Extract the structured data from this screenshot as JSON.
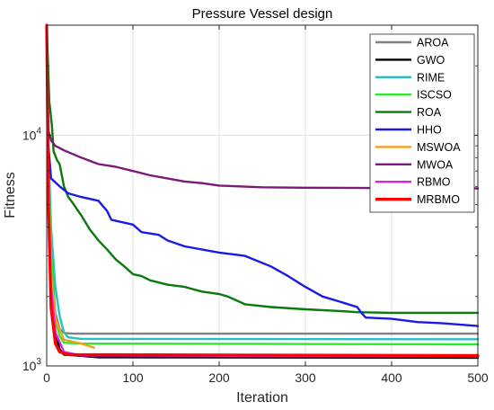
{
  "chart_data": {
    "type": "line",
    "title": "Pressure Vessel design",
    "xlabel": "Iteration",
    "ylabel": "Fitness",
    "xlim": [
      0,
      500
    ],
    "ylim": [
      1000,
      30000
    ],
    "yscale": "log",
    "grid": true,
    "legend_position": "top-right",
    "x_ticks": [
      "0",
      "100",
      "200",
      "300",
      "400",
      "500"
    ],
    "y_ticks": [
      {
        "base": "10",
        "exp": "3",
        "value": 1000
      },
      {
        "base": "10",
        "exp": "4",
        "value": 10000
      }
    ],
    "series": [
      {
        "name": "AROA",
        "color": "#808080",
        "points": [
          [
            0,
            30000
          ],
          [
            2,
            8000
          ],
          [
            5,
            3000
          ],
          [
            10,
            1700
          ],
          [
            15,
            1450
          ],
          [
            20,
            1390
          ],
          [
            30,
            1380
          ],
          [
            500,
            1380
          ]
        ]
      },
      {
        "name": "GWO",
        "color": "#000000",
        "points": [
          [
            0,
            30000
          ],
          [
            2,
            7000
          ],
          [
            5,
            2500
          ],
          [
            10,
            1400
          ],
          [
            15,
            1180
          ],
          [
            20,
            1120
          ],
          [
            35,
            1110
          ],
          [
            60,
            1090
          ],
          [
            500,
            1085
          ]
        ]
      },
      {
        "name": "RIME",
        "color": "#28bfbf",
        "points": [
          [
            0,
            30000
          ],
          [
            2,
            9000
          ],
          [
            5,
            4000
          ],
          [
            10,
            2200
          ],
          [
            15,
            1650
          ],
          [
            20,
            1400
          ],
          [
            25,
            1330
          ],
          [
            40,
            1310
          ],
          [
            500,
            1305
          ]
        ]
      },
      {
        "name": "ISCSO",
        "color": "#2ee82e",
        "points": [
          [
            0,
            30000
          ],
          [
            2,
            7500
          ],
          [
            5,
            3000
          ],
          [
            10,
            1600
          ],
          [
            15,
            1350
          ],
          [
            20,
            1260
          ],
          [
            40,
            1250
          ],
          [
            500,
            1240
          ]
        ]
      },
      {
        "name": "ROA",
        "color": "#0a7a0a",
        "points": [
          [
            0,
            30000
          ],
          [
            3,
            14000
          ],
          [
            6,
            11000
          ],
          [
            8,
            8500
          ],
          [
            12,
            7800
          ],
          [
            15,
            7500
          ],
          [
            20,
            6000
          ],
          [
            25,
            5400
          ],
          [
            30,
            5100
          ],
          [
            40,
            4500
          ],
          [
            50,
            3900
          ],
          [
            60,
            3500
          ],
          [
            70,
            3200
          ],
          [
            80,
            2900
          ],
          [
            90,
            2700
          ],
          [
            100,
            2500
          ],
          [
            110,
            2450
          ],
          [
            120,
            2350
          ],
          [
            140,
            2250
          ],
          [
            160,
            2200
          ],
          [
            180,
            2100
          ],
          [
            200,
            2050
          ],
          [
            210,
            2000
          ],
          [
            230,
            1850
          ],
          [
            260,
            1800
          ],
          [
            300,
            1760
          ],
          [
            340,
            1730
          ],
          [
            360,
            1710
          ],
          [
            400,
            1700
          ],
          [
            500,
            1700
          ]
        ]
      },
      {
        "name": "HHO",
        "color": "#1a1ae6",
        "points": [
          [
            0,
            30000
          ],
          [
            2,
            9000
          ],
          [
            5,
            6500
          ],
          [
            15,
            6000
          ],
          [
            25,
            5600
          ],
          [
            40,
            5400
          ],
          [
            60,
            5200
          ],
          [
            70,
            4700
          ],
          [
            75,
            4300
          ],
          [
            100,
            4100
          ],
          [
            110,
            3800
          ],
          [
            130,
            3700
          ],
          [
            140,
            3500
          ],
          [
            160,
            3300
          ],
          [
            200,
            3100
          ],
          [
            230,
            3000
          ],
          [
            260,
            2700
          ],
          [
            280,
            2450
          ],
          [
            300,
            2200
          ],
          [
            320,
            2000
          ],
          [
            340,
            1900
          ],
          [
            360,
            1800
          ],
          [
            365,
            1700
          ],
          [
            370,
            1620
          ],
          [
            400,
            1600
          ],
          [
            430,
            1550
          ],
          [
            460,
            1530
          ],
          [
            500,
            1490
          ]
        ]
      },
      {
        "name": "MSWOA",
        "color": "#f0a020",
        "points": [
          [
            0,
            30000
          ],
          [
            2,
            7000
          ],
          [
            5,
            2500
          ],
          [
            10,
            1600
          ],
          [
            20,
            1300
          ],
          [
            40,
            1250
          ],
          [
            55,
            1200
          ],
          [
            56,
            null
          ]
        ]
      },
      {
        "name": "MWOA",
        "color": "#7a1a7a",
        "points": [
          [
            0,
            30000
          ],
          [
            2,
            10500
          ],
          [
            5,
            9500
          ],
          [
            10,
            9000
          ],
          [
            20,
            8600
          ],
          [
            40,
            8000
          ],
          [
            60,
            7500
          ],
          [
            80,
            7300
          ],
          [
            100,
            7000
          ],
          [
            120,
            6700
          ],
          [
            140,
            6500
          ],
          [
            160,
            6300
          ],
          [
            180,
            6200
          ],
          [
            200,
            6050
          ],
          [
            250,
            5950
          ],
          [
            300,
            5920
          ],
          [
            400,
            5900
          ],
          [
            500,
            5880
          ]
        ]
      },
      {
        "name": "RBMO",
        "color": "#e020e0",
        "points": [
          [
            0,
            30000
          ],
          [
            2,
            6000
          ],
          [
            5,
            2200
          ],
          [
            10,
            1400
          ],
          [
            20,
            1150
          ],
          [
            40,
            1110
          ],
          [
            500,
            1100
          ]
        ]
      },
      {
        "name": "MRBMO",
        "color": "#ff0000",
        "points": [
          [
            0,
            30000
          ],
          [
            2,
            5000
          ],
          [
            5,
            1800
          ],
          [
            10,
            1250
          ],
          [
            15,
            1150
          ],
          [
            25,
            1120
          ],
          [
            500,
            1110
          ]
        ]
      }
    ]
  }
}
